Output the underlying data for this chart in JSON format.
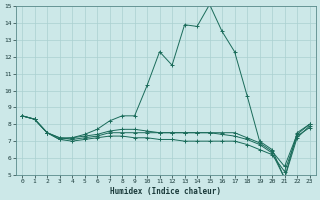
{
  "xlabel": "Humidex (Indice chaleur)",
  "xlim": [
    -0.5,
    23.5
  ],
  "ylim": [
    5,
    15
  ],
  "yticks": [
    5,
    6,
    7,
    8,
    9,
    10,
    11,
    12,
    13,
    14,
    15
  ],
  "xticks": [
    0,
    1,
    2,
    3,
    4,
    5,
    6,
    7,
    8,
    9,
    10,
    11,
    12,
    13,
    14,
    15,
    16,
    17,
    18,
    19,
    20,
    21,
    22,
    23
  ],
  "background_color": "#cce8e8",
  "grid_color": "#aad0d0",
  "line_color": "#1a6b5a",
  "lines": [
    {
      "x": [
        0,
        1,
        2,
        3,
        4,
        5,
        6,
        7,
        8,
        9,
        10,
        11,
        12,
        13,
        14,
        15,
        16,
        17,
        18,
        19,
        20,
        21,
        22,
        23
      ],
      "y": [
        8.5,
        8.3,
        7.5,
        7.1,
        7.2,
        7.4,
        7.7,
        8.2,
        8.5,
        8.5,
        10.3,
        12.3,
        11.5,
        13.9,
        13.8,
        15.1,
        13.5,
        12.3,
        9.7,
        7.0,
        6.5,
        4.8,
        7.5,
        8.0
      ]
    },
    {
      "x": [
        0,
        1,
        2,
        3,
        4,
        5,
        6,
        7,
        8,
        9,
        10,
        11,
        12,
        13,
        14,
        15,
        16,
        17,
        18,
        19,
        20,
        21,
        22,
        23
      ],
      "y": [
        8.5,
        8.3,
        7.5,
        7.2,
        7.1,
        7.2,
        7.3,
        7.5,
        7.5,
        7.5,
        7.5,
        7.5,
        7.5,
        7.5,
        7.5,
        7.5,
        7.5,
        7.5,
        7.2,
        6.9,
        6.4,
        5.5,
        7.4,
        8.0
      ]
    },
    {
      "x": [
        0,
        1,
        2,
        3,
        4,
        5,
        6,
        7,
        8,
        9,
        10,
        11,
        12,
        13,
        14,
        15,
        16,
        17,
        18,
        19,
        20,
        21,
        22,
        23
      ],
      "y": [
        8.5,
        8.3,
        7.5,
        7.2,
        7.2,
        7.3,
        7.4,
        7.6,
        7.7,
        7.7,
        7.6,
        7.5,
        7.5,
        7.5,
        7.5,
        7.5,
        7.4,
        7.3,
        7.1,
        6.8,
        6.3,
        4.8,
        7.2,
        7.9
      ]
    },
    {
      "x": [
        0,
        1,
        2,
        3,
        4,
        5,
        6,
        7,
        8,
        9,
        10,
        11,
        12,
        13,
        14,
        15,
        16,
        17,
        18,
        19,
        20,
        21,
        22,
        23
      ],
      "y": [
        8.5,
        8.3,
        7.5,
        7.1,
        7.0,
        7.1,
        7.2,
        7.3,
        7.3,
        7.2,
        7.2,
        7.1,
        7.1,
        7.0,
        7.0,
        7.0,
        7.0,
        7.0,
        6.8,
        6.5,
        6.2,
        5.2,
        7.3,
        7.8
      ]
    }
  ]
}
